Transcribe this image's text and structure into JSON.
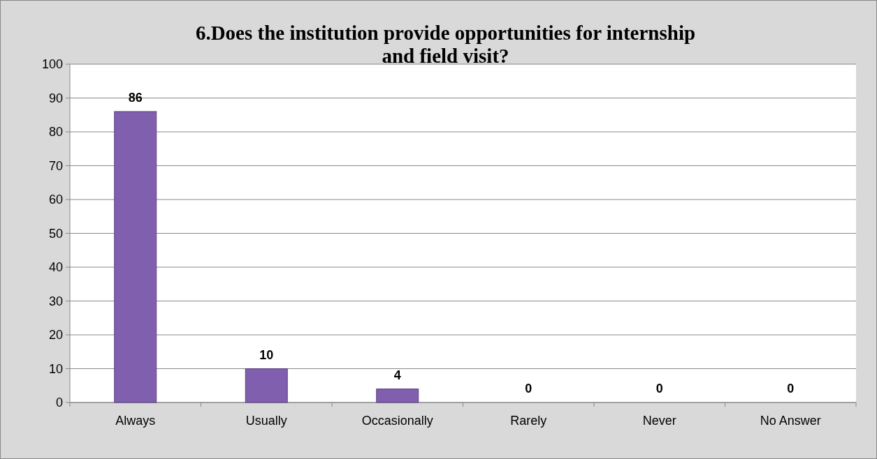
{
  "chart_data": {
    "type": "bar",
    "title": "6.Does the institution provide opportunities for internship and field visit?",
    "categories": [
      "Always",
      "Usually",
      "Occasionally",
      "Rarely",
      "Never",
      "No Answer"
    ],
    "values": [
      86,
      10,
      4,
      0,
      0,
      0
    ],
    "color": "#7f5fae",
    "ylim": [
      0,
      100
    ],
    "yticks": [
      0,
      10,
      20,
      30,
      40,
      50,
      60,
      70,
      80,
      90,
      100
    ],
    "grid": "y",
    "data_labels": true
  }
}
